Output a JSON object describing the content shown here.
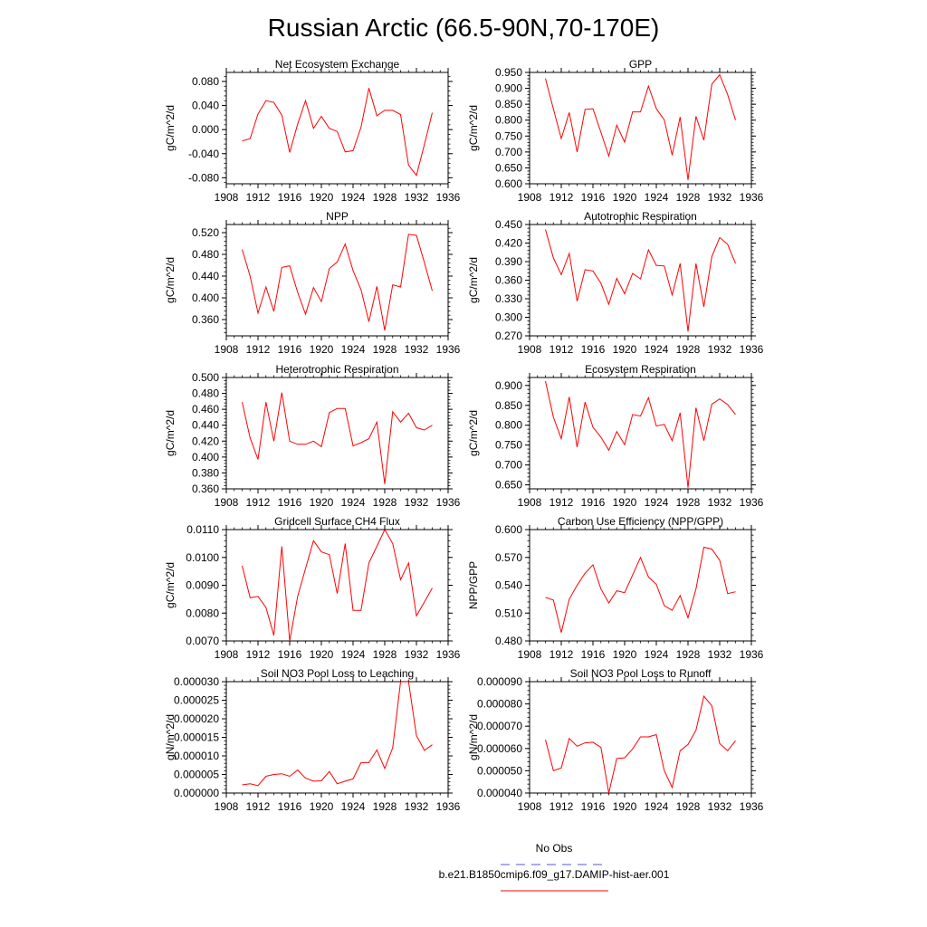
{
  "figure": {
    "title": "Russian Arctic (66.5-90N,70-170E)",
    "legend": {
      "entries": [
        {
          "label": "No Obs",
          "color": "#5555dd",
          "style": "dashed"
        },
        {
          "label": "b.e21.B1850cmip6.f09_g17.DAMIP-hist-aer.001",
          "color": "#ff0000",
          "style": "solid"
        }
      ]
    }
  },
  "chart_data": [
    {
      "type": "line",
      "title": "Net Ecosystem Exchange",
      "ylabel": "gC/m^2/d",
      "xlim": [
        1908,
        1936
      ],
      "xticks": [
        "1908",
        "1912",
        "1916",
        "1920",
        "1924",
        "1928",
        "1932",
        "1936"
      ],
      "ylim": [
        -0.09,
        0.095
      ],
      "yticks": [
        "-0.080",
        "-0.040",
        "0.000",
        "0.040",
        "0.080"
      ],
      "color": "#ff0000",
      "x": [
        1910,
        1911,
        1912,
        1913,
        1914,
        1915,
        1916,
        1917,
        1918,
        1919,
        1920,
        1921,
        1922,
        1923,
        1924,
        1925,
        1926,
        1927,
        1928,
        1929,
        1930,
        1931,
        1932,
        1933,
        1934
      ],
      "y": [
        -0.019,
        -0.015,
        0.026,
        0.048,
        0.045,
        0.024,
        -0.038,
        0.009,
        0.048,
        0.002,
        0.022,
        0.002,
        -0.003,
        -0.037,
        -0.035,
        0.004,
        0.069,
        0.023,
        0.032,
        0.032,
        0.025,
        -0.059,
        -0.076,
        -0.025,
        0.028
      ]
    },
    {
      "type": "line",
      "title": "GPP",
      "ylabel": "gC/m^2/d",
      "xlim": [
        1908,
        1936
      ],
      "xticks": [
        "1908",
        "1912",
        "1916",
        "1920",
        "1924",
        "1928",
        "1932",
        "1936"
      ],
      "ylim": [
        0.6,
        0.95
      ],
      "yticks": [
        "0.600",
        "0.650",
        "0.700",
        "0.750",
        "0.800",
        "0.850",
        "0.900",
        "0.950"
      ],
      "color": "#ff0000",
      "x": [
        1910,
        1911,
        1912,
        1913,
        1914,
        1915,
        1916,
        1917,
        1918,
        1919,
        1920,
        1921,
        1922,
        1923,
        1924,
        1925,
        1926,
        1927,
        1928,
        1929,
        1930,
        1931,
        1932,
        1933,
        1934
      ],
      "y": [
        0.931,
        0.835,
        0.742,
        0.824,
        0.7,
        0.834,
        0.836,
        0.762,
        0.687,
        0.784,
        0.731,
        0.826,
        0.826,
        0.907,
        0.836,
        0.801,
        0.69,
        0.81,
        0.612,
        0.812,
        0.737,
        0.913,
        0.943,
        0.88,
        0.8
      ]
    },
    {
      "type": "line",
      "title": "NPP",
      "ylabel": "gC/m^2/d",
      "xlim": [
        1908,
        1936
      ],
      "xticks": [
        "1908",
        "1912",
        "1916",
        "1920",
        "1924",
        "1928",
        "1932",
        "1936"
      ],
      "ylim": [
        0.33,
        0.535
      ],
      "yticks": [
        "0.360",
        "0.400",
        "0.440",
        "0.480",
        "0.520"
      ],
      "color": "#ff0000",
      "x": [
        1910,
        1911,
        1912,
        1913,
        1914,
        1915,
        1916,
        1917,
        1918,
        1919,
        1920,
        1921,
        1922,
        1923,
        1924,
        1925,
        1926,
        1927,
        1928,
        1929,
        1930,
        1931,
        1932,
        1933,
        1934
      ],
      "y": [
        0.489,
        0.44,
        0.372,
        0.42,
        0.375,
        0.456,
        0.459,
        0.41,
        0.37,
        0.419,
        0.393,
        0.454,
        0.466,
        0.499,
        0.45,
        0.415,
        0.356,
        0.421,
        0.34,
        0.424,
        0.42,
        0.517,
        0.515,
        0.465,
        0.413
      ]
    },
    {
      "type": "line",
      "title": "Autotrophic Respiration",
      "ylabel": "gC/m^2/d",
      "xlim": [
        1908,
        1936
      ],
      "xticks": [
        "1908",
        "1912",
        "1916",
        "1920",
        "1924",
        "1928",
        "1932",
        "1936"
      ],
      "ylim": [
        0.27,
        0.45
      ],
      "yticks": [
        "0.270",
        "0.300",
        "0.330",
        "0.360",
        "0.390",
        "0.420",
        "0.450"
      ],
      "color": "#ff0000",
      "x": [
        1910,
        1911,
        1912,
        1913,
        1914,
        1915,
        1916,
        1917,
        1918,
        1919,
        1920,
        1921,
        1922,
        1923,
        1924,
        1925,
        1926,
        1927,
        1928,
        1929,
        1930,
        1931,
        1932,
        1933,
        1934
      ],
      "y": [
        0.442,
        0.396,
        0.369,
        0.403,
        0.326,
        0.377,
        0.375,
        0.355,
        0.321,
        0.363,
        0.338,
        0.371,
        0.362,
        0.409,
        0.384,
        0.383,
        0.336,
        0.387,
        0.277,
        0.387,
        0.317,
        0.398,
        0.429,
        0.418,
        0.387
      ]
    },
    {
      "type": "line",
      "title": "Heterotrophic Respiration",
      "ylabel": "gC/m^2/d",
      "xlim": [
        1908,
        1936
      ],
      "xticks": [
        "1908",
        "1912",
        "1916",
        "1920",
        "1924",
        "1928",
        "1932",
        "1936"
      ],
      "ylim": [
        0.36,
        0.5
      ],
      "yticks": [
        "0.360",
        "0.380",
        "0.400",
        "0.420",
        "0.440",
        "0.460",
        "0.480",
        "0.500"
      ],
      "color": "#ff0000",
      "x": [
        1910,
        1911,
        1912,
        1913,
        1914,
        1915,
        1916,
        1917,
        1918,
        1919,
        1920,
        1921,
        1922,
        1923,
        1924,
        1925,
        1926,
        1927,
        1928,
        1929,
        1930,
        1931,
        1932,
        1933,
        1934
      ],
      "y": [
        0.469,
        0.424,
        0.397,
        0.469,
        0.42,
        0.481,
        0.42,
        0.416,
        0.416,
        0.42,
        0.413,
        0.456,
        0.461,
        0.461,
        0.414,
        0.418,
        0.423,
        0.444,
        0.366,
        0.457,
        0.444,
        0.455,
        0.437,
        0.434,
        0.44
      ]
    },
    {
      "type": "line",
      "title": "Ecosystem Respiration",
      "ylabel": "gC/m^2/d",
      "xlim": [
        1908,
        1936
      ],
      "xticks": [
        "1908",
        "1912",
        "1916",
        "1920",
        "1924",
        "1928",
        "1932",
        "1936"
      ],
      "ylim": [
        0.64,
        0.92
      ],
      "yticks": [
        "0.650",
        "0.700",
        "0.750",
        "0.800",
        "0.850",
        "0.900"
      ],
      "color": "#ff0000",
      "x": [
        1910,
        1911,
        1912,
        1913,
        1914,
        1915,
        1916,
        1917,
        1918,
        1919,
        1920,
        1921,
        1922,
        1923,
        1924,
        1925,
        1926,
        1927,
        1928,
        1929,
        1930,
        1931,
        1932,
        1933,
        1934
      ],
      "y": [
        0.911,
        0.82,
        0.766,
        0.871,
        0.745,
        0.858,
        0.795,
        0.77,
        0.737,
        0.784,
        0.751,
        0.827,
        0.823,
        0.869,
        0.798,
        0.802,
        0.761,
        0.831,
        0.643,
        0.844,
        0.761,
        0.853,
        0.866,
        0.852,
        0.827
      ]
    },
    {
      "type": "line",
      "title": "Gridcell Surface CH4 Flux",
      "ylabel": "gC/m^2/d",
      "xlim": [
        1908,
        1936
      ],
      "xticks": [
        "1908",
        "1912",
        "1916",
        "1920",
        "1924",
        "1928",
        "1932",
        "1936"
      ],
      "ylim": [
        0.007,
        0.011
      ],
      "yticks": [
        "0.0070",
        "0.0080",
        "0.0090",
        "0.0100",
        "0.0110"
      ],
      "color": "#ff0000",
      "x": [
        1910,
        1911,
        1912,
        1913,
        1914,
        1915,
        1916,
        1917,
        1918,
        1919,
        1920,
        1921,
        1922,
        1923,
        1924,
        1925,
        1926,
        1927,
        1928,
        1929,
        1930,
        1931,
        1932,
        1933,
        1934
      ],
      "y": [
        0.0097,
        0.00855,
        0.0086,
        0.0082,
        0.0072,
        0.0104,
        0.007,
        0.0086,
        0.0096,
        0.0106,
        0.0102,
        0.0101,
        0.0087,
        0.0105,
        0.0081,
        0.0081,
        0.0098,
        0.0104,
        0.011,
        0.0105,
        0.0092,
        0.0098,
        0.0079,
        0.0084,
        0.0089
      ]
    },
    {
      "type": "line",
      "title": "Carbon Use Efficiency (NPP/GPP)",
      "ylabel": "NPP/GPP",
      "xlim": [
        1908,
        1936
      ],
      "xticks": [
        "1908",
        "1912",
        "1916",
        "1920",
        "1924",
        "1928",
        "1932",
        "1936"
      ],
      "ylim": [
        0.48,
        0.6
      ],
      "yticks": [
        "0.480",
        "0.510",
        "0.540",
        "0.570",
        "0.600"
      ],
      "color": "#ff0000",
      "x": [
        1910,
        1911,
        1912,
        1913,
        1914,
        1915,
        1916,
        1917,
        1918,
        1919,
        1920,
        1921,
        1922,
        1923,
        1924,
        1925,
        1926,
        1927,
        1928,
        1929,
        1930,
        1931,
        1932,
        1933,
        1934
      ],
      "y": [
        0.527,
        0.524,
        0.489,
        0.525,
        0.54,
        0.553,
        0.562,
        0.536,
        0.521,
        0.534,
        0.532,
        0.551,
        0.57,
        0.549,
        0.541,
        0.518,
        0.513,
        0.529,
        0.505,
        0.536,
        0.581,
        0.579,
        0.567,
        0.531,
        0.533
      ]
    },
    {
      "type": "line",
      "title": "Soil NO3 Pool Loss to Leaching",
      "ylabel": "gN/m^2/d",
      "xlim": [
        1908,
        1936
      ],
      "xticks": [
        "1908",
        "1912",
        "1916",
        "1920",
        "1924",
        "1928",
        "1932",
        "1936"
      ],
      "ylim": [
        0.0,
        3e-05
      ],
      "yticks": [
        "0.000000",
        "0.000005",
        "0.000010",
        "0.000015",
        "0.000020",
        "0.000025",
        "0.000030"
      ],
      "color": "#ff0000",
      "x": [
        1910,
        1911,
        1912,
        1913,
        1914,
        1915,
        1916,
        1917,
        1918,
        1919,
        1920,
        1921,
        1922,
        1923,
        1924,
        1925,
        1926,
        1927,
        1928,
        1929,
        1930,
        1931,
        1932,
        1933,
        1934
      ],
      "y": [
        2.2e-06,
        2.5e-06,
        2e-06,
        4.5e-06,
        5e-06,
        5.2e-06,
        4.5e-06,
        6.2e-06,
        4e-06,
        3.2e-06,
        3.3e-06,
        5.8e-06,
        2.5e-06,
        3.2e-06,
        3.8e-06,
        8.2e-06,
        8.2e-06,
        1.16e-05,
        6.6e-06,
        1.22e-05,
        3e-05,
        3e-05,
        1.55e-05,
        1.15e-05,
        1.3e-05
      ]
    },
    {
      "type": "line",
      "title": "Soil NO3 Pool Loss to Runoff",
      "ylabel": "gN/m^2/d",
      "xlim": [
        1908,
        1936
      ],
      "xticks": [
        "1908",
        "1912",
        "1916",
        "1920",
        "1924",
        "1928",
        "1932",
        "1936"
      ],
      "ylim": [
        4e-05,
        9e-05
      ],
      "yticks": [
        "0.000040",
        "0.000050",
        "0.000060",
        "0.000070",
        "0.000080",
        "0.000090"
      ],
      "color": "#ff0000",
      "x": [
        1910,
        1911,
        1912,
        1913,
        1914,
        1915,
        1916,
        1917,
        1918,
        1919,
        1920,
        1921,
        1922,
        1923,
        1924,
        1925,
        1926,
        1927,
        1928,
        1929,
        1930,
        1931,
        1932,
        1933,
        1934
      ],
      "y": [
        6.4e-05,
        5e-05,
        5.12e-05,
        6.45e-05,
        6.1e-05,
        6.25e-05,
        6.28e-05,
        6.05e-05,
        4e-05,
        5.55e-05,
        5.58e-05,
        5.98e-05,
        6.52e-05,
        6.52e-05,
        6.62e-05,
        5e-05,
        4.25e-05,
        5.9e-05,
        6.18e-05,
        6.82e-05,
        8.35e-05,
        7.92e-05,
        6.22e-05,
        5.9e-05,
        6.35e-05
      ]
    }
  ]
}
